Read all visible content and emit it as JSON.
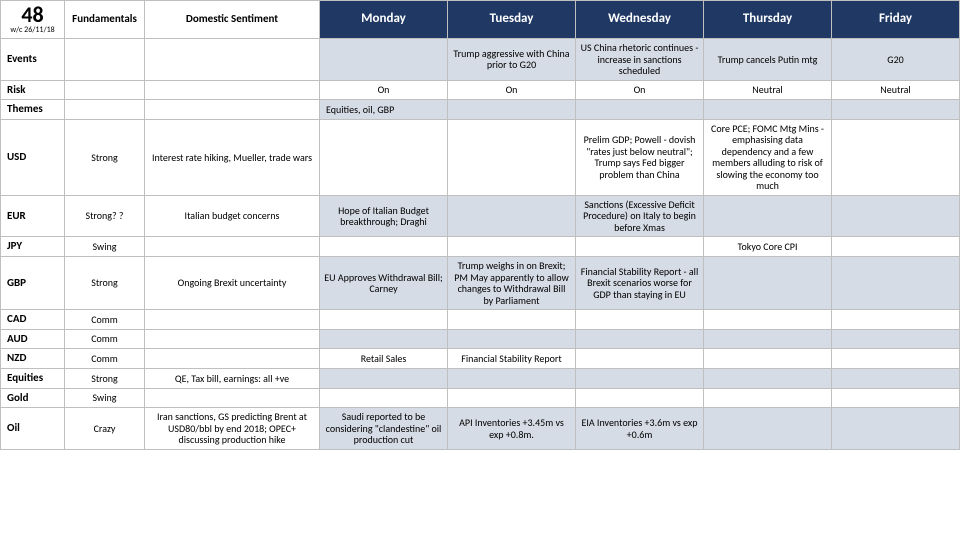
{
  "meta": {
    "week_number": "48",
    "week_label": "w/c 26/11/18",
    "col_b": "Fundamentals",
    "col_c": "Domestic Sentiment",
    "days": [
      "Monday",
      "Tuesday",
      "Wednesday",
      "Thursday",
      "Friday"
    ]
  },
  "colors": {
    "header_bg": "#1f3864",
    "header_fg": "#ffffff",
    "alt_bg": "#d6dce5",
    "border": "#bfbfbf"
  },
  "rows": [
    {
      "label": "Events",
      "fund": "",
      "sent": "",
      "mon": "",
      "tue": "Trump aggressive with China prior to G20",
      "wed": "US China rhetoric continues - increase in sanctions scheduled",
      "thu": "Trump cancels Putin mtg",
      "fri": "G20",
      "alt": true
    },
    {
      "label": "Risk",
      "fund": "",
      "sent": "",
      "mon": "On",
      "tue": "On",
      "wed": "On",
      "thu": "Neutral",
      "fri": "Neutral"
    },
    {
      "label": "Themes",
      "fund": "",
      "sent": "",
      "mon": "Equities, oil, GBP",
      "tue": "",
      "wed": "",
      "thu": "",
      "fri": "",
      "alt": true,
      "mon_left": true
    },
    {
      "label": "USD",
      "fund": "Strong",
      "sent": "Interest rate hiking, Mueller, trade wars",
      "mon": "",
      "tue": "",
      "wed": "Prelim GDP; Powell - dovish \"rates just below neutral\"; Trump says Fed bigger problem than China",
      "thu": "Core PCE; FOMC Mtg Mins - emphasising data dependency and a few members alluding to risk of slowing the economy too much",
      "fri": ""
    },
    {
      "label": "EUR",
      "fund": "Strong? ?",
      "sent": "Italian budget concerns",
      "mon": "Hope of Italian Budget breakthrough; Draghi",
      "tue": "",
      "wed": "Sanctions (Excessive Deficit Procedure) on Italy to begin before Xmas",
      "thu": "",
      "fri": "",
      "alt": true
    },
    {
      "label": "JPY",
      "fund": "Swing",
      "sent": "",
      "mon": "",
      "tue": "",
      "wed": "",
      "thu": "Tokyo Core CPI",
      "fri": ""
    },
    {
      "label": "GBP",
      "fund": "Strong",
      "sent": "Ongoing Brexit uncertainty",
      "mon": "EU Approves Withdrawal Bill; Carney",
      "tue": "Trump weighs in on Brexit; PM May apparently to allow changes to Withdrawal Bill by Parliament",
      "wed": "Financial Stability Report - all Brexit scenarios worse for GDP than staying in EU",
      "thu": "",
      "fri": "",
      "alt": true
    },
    {
      "label": "CAD",
      "fund": "Comm",
      "sent": "",
      "mon": "",
      "tue": "",
      "wed": "",
      "thu": "",
      "fri": ""
    },
    {
      "label": "AUD",
      "fund": "Comm",
      "sent": "",
      "mon": "",
      "tue": "",
      "wed": "",
      "thu": "",
      "fri": "",
      "alt": true
    },
    {
      "label": "NZD",
      "fund": "Comm",
      "sent": "",
      "mon": "Retail Sales",
      "tue": "Financial Stability Report",
      "wed": "",
      "thu": "",
      "fri": ""
    },
    {
      "label": "Equities",
      "fund": "Strong",
      "sent": "QE, Tax bill, earnings: all +ve",
      "mon": "",
      "tue": "",
      "wed": "",
      "thu": "",
      "fri": "",
      "alt": true
    },
    {
      "label": "Gold",
      "fund": "Swing",
      "sent": "",
      "mon": "",
      "tue": "",
      "wed": "",
      "thu": "",
      "fri": ""
    },
    {
      "label": "Oil",
      "fund": "Crazy",
      "sent": "Iran sanctions, GS predicting Brent at USD80/bbl by end 2018; OPEC+ discussing production hike",
      "mon": "Saudi reported to be considering \"clandestine\" oil production cut",
      "tue": "API Inventories +3.45m vs exp +0.8m.",
      "wed": "EIA Inventories +3.6m vs exp +0.6m",
      "thu": "",
      "fri": "",
      "alt": true
    }
  ]
}
